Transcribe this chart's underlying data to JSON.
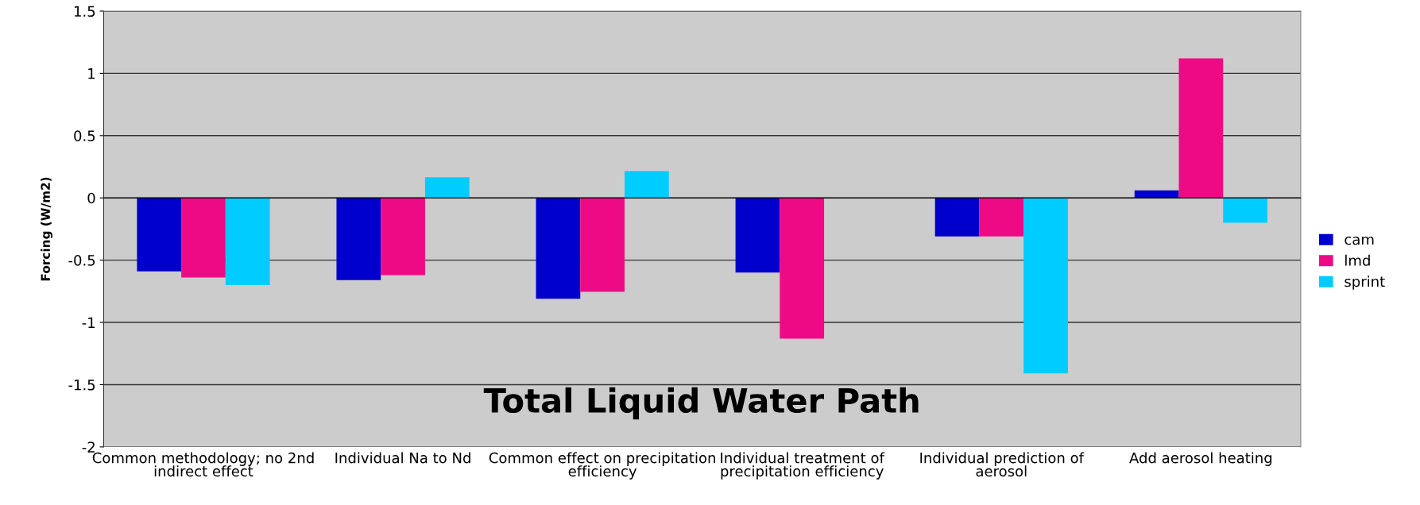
{
  "chart_data": {
    "type": "bar",
    "title": "Total Liquid Water Path",
    "ylabel": "Forcing (W/m2)",
    "categories": [
      "Common methodology; no 2nd indirect effect",
      "Individual Na to Nd",
      "Common effect on precipitation efficiency",
      "Individual treatment of precipitation efficiency",
      "Individual prediction of aerosol",
      "Add aerosol heating"
    ],
    "series": [
      {
        "name": "cam",
        "color": "#0000cc",
        "values": [
          -0.59,
          -0.66,
          -0.81,
          -0.6,
          -0.31,
          0.06
        ]
      },
      {
        "name": "lmd",
        "color": "#ee0a85",
        "values": [
          -0.64,
          -0.62,
          -0.755,
          -1.13,
          -0.31,
          1.12
        ]
      },
      {
        "name": "sprint",
        "color": "#00ccff",
        "values": [
          -0.7,
          0.165,
          0.215,
          null,
          -1.41,
          -0.2
        ]
      }
    ],
    "ylim": [
      -2,
      1.5
    ],
    "yticks": [
      -2,
      -1.5,
      -1,
      -0.5,
      0,
      0.5,
      1,
      1.5
    ],
    "grid": "y",
    "legend": "right"
  }
}
